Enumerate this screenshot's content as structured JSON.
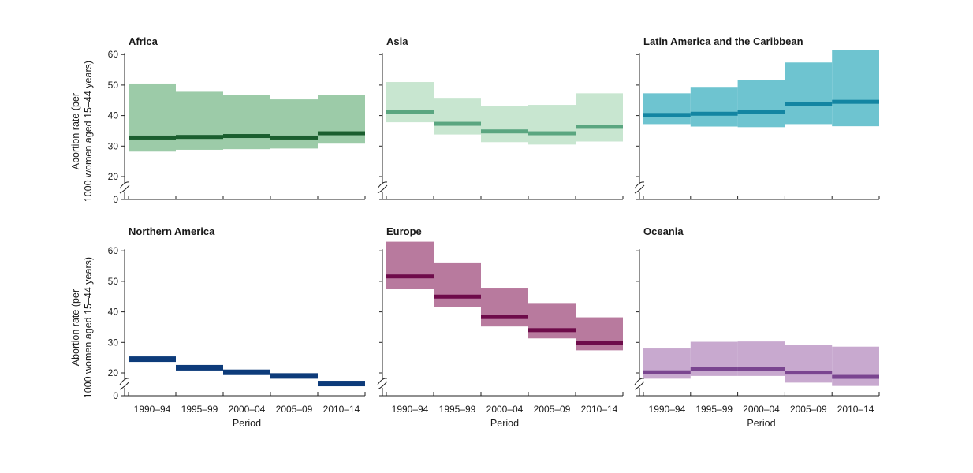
{
  "chart_data": [
    {
      "type": "area",
      "title": "Africa",
      "colors": {
        "band": "#9ccba8",
        "line": "#1b5e2f"
      },
      "categories": [
        "1990–94",
        "1995–99",
        "2000–04",
        "2005–09",
        "2010–14"
      ],
      "series": [
        {
          "values": [
            32.8,
            33.0,
            33.3,
            32.8,
            34.2
          ],
          "lower": [
            28.2,
            28.8,
            29.0,
            29.2,
            30.8
          ],
          "upper": [
            50.5,
            47.8,
            46.8,
            45.3,
            46.8
          ]
        }
      ],
      "ylim": [
        0,
        60
      ],
      "y_ticks": [
        0,
        20,
        30,
        40,
        50,
        60
      ],
      "axis_break": true,
      "ylabel": "Abortion rate (per 1000 women aged 15–44 years)",
      "xlabel": ""
    },
    {
      "type": "area",
      "title": "Asia",
      "colors": {
        "band": "#c8e6d0",
        "line": "#5aa680"
      },
      "categories": [
        "1990–94",
        "1995–99",
        "2000–04",
        "2005–09",
        "2010–14"
      ],
      "series": [
        {
          "values": [
            41.3,
            37.3,
            34.8,
            34.2,
            36.3
          ],
          "lower": [
            37.8,
            33.8,
            31.3,
            30.5,
            31.5
          ],
          "upper": [
            51.0,
            45.8,
            43.2,
            43.5,
            47.3
          ]
        }
      ],
      "ylim": [
        0,
        60
      ],
      "axis_break": true,
      "xlabel": ""
    },
    {
      "type": "area",
      "title": "Latin America and the Caribbean",
      "colors": {
        "band": "#6ec4d0",
        "line": "#1385a2"
      },
      "categories": [
        "1990–94",
        "1995–99",
        "2000–04",
        "2005–09",
        "2010–14"
      ],
      "series": [
        {
          "values": [
            40.2,
            40.6,
            41.1,
            43.9,
            44.5
          ],
          "lower": [
            37.2,
            36.4,
            36.2,
            37.2,
            36.5
          ],
          "upper": [
            47.3,
            49.4,
            51.6,
            57.4,
            61.6
          ]
        }
      ],
      "ylim": [
        0,
        60
      ],
      "axis_break": true,
      "xlabel": ""
    },
    {
      "type": "area",
      "title": "Northern America",
      "colors": {
        "band": "#0d3b7a",
        "line": "#0d3b7a"
      },
      "categories": [
        "1990–94",
        "1995–99",
        "2000–04",
        "2005–09",
        "2010–14"
      ],
      "series": [
        {
          "values": [
            24.5,
            21.7,
            20.2,
            19.0,
            16.5
          ],
          "lower": [
            23.7,
            20.9,
            19.4,
            18.2,
            15.7
          ],
          "upper": [
            25.3,
            22.5,
            21.0,
            19.8,
            17.3
          ]
        }
      ],
      "ylim": [
        0,
        60
      ],
      "y_ticks": [
        0,
        20,
        30,
        40,
        50,
        60
      ],
      "axis_break": true,
      "ylabel": "Abortion rate (per 1000 women aged 15–44 years)",
      "xlabel": "Period"
    },
    {
      "type": "area",
      "title": "Europe",
      "colors": {
        "band": "#b87a9e",
        "line": "#6e0b4a"
      },
      "categories": [
        "1990–94",
        "1995–99",
        "2000–04",
        "2005–09",
        "2010–14"
      ],
      "series": [
        {
          "values": [
            51.6,
            45.0,
            38.3,
            34.0,
            29.8
          ],
          "lower": [
            47.5,
            41.7,
            35.2,
            31.3,
            27.4
          ],
          "upper": [
            63.0,
            56.2,
            47.9,
            42.9,
            38.2
          ]
        }
      ],
      "ylim": [
        0,
        60
      ],
      "axis_break": true,
      "xlabel": "Period"
    },
    {
      "type": "area",
      "title": "Oceania",
      "colors": {
        "band": "#c8a9cf",
        "line": "#7a4590"
      },
      "categories": [
        "1990–94",
        "1995–99",
        "2000–04",
        "2005–09",
        "2010–14"
      ],
      "series": [
        {
          "values": [
            20.2,
            21.3,
            21.3,
            20.1,
            18.7
          ],
          "lower": [
            18.1,
            19.0,
            19.0,
            16.8,
            15.7
          ],
          "upper": [
            28.0,
            30.2,
            30.3,
            29.3,
            28.6
          ]
        }
      ],
      "ylim": [
        0,
        60
      ],
      "axis_break": true,
      "xlabel": "Period"
    }
  ]
}
